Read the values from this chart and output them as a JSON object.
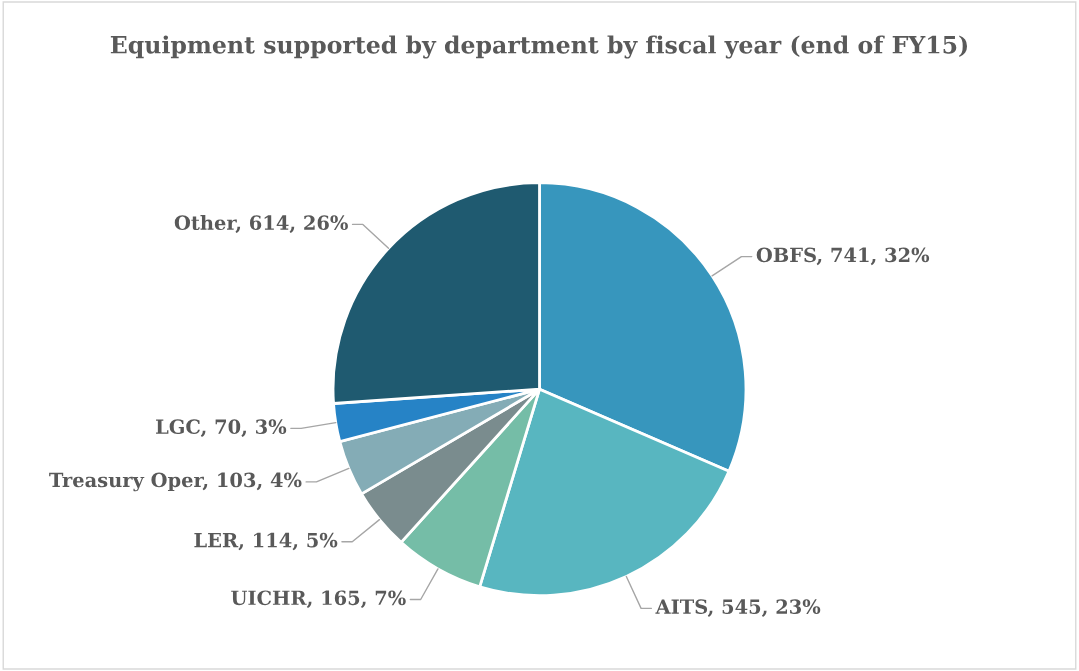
{
  "chart_data": {
    "type": "pie",
    "title": "Equipment supported by department by fiscal year (end of FY15)",
    "categories": [
      "OBFS",
      "AITS",
      "UICHR",
      "LER",
      "Treasury Oper",
      "LGC",
      "Other"
    ],
    "values": [
      741,
      545,
      165,
      114,
      103,
      70,
      614
    ],
    "value_labels": [
      "741, 32%",
      "545, 23%",
      "165, 7%",
      "114, 5%",
      "103, 4%",
      "70, 3%",
      "614, 26%"
    ],
    "colors": [
      "#3796bd",
      "#58b6c0",
      "#75bda7",
      "#7a8c8e",
      "#84acb6",
      "#2683c6",
      "#1f5a70"
    ],
    "legend": false
  }
}
